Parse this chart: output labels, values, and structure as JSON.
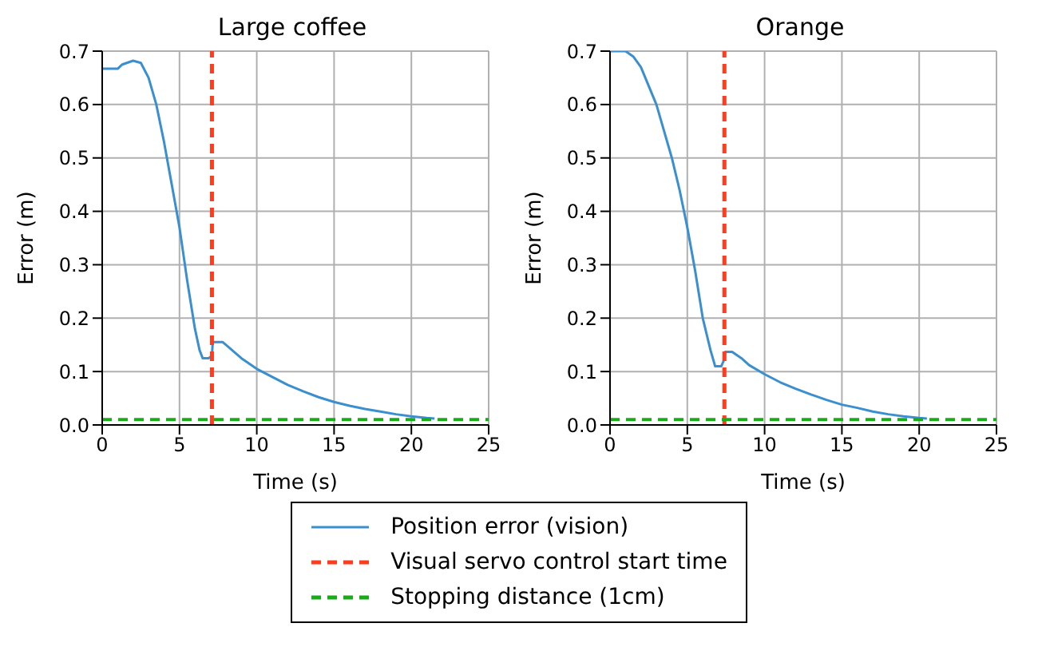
{
  "chart_data": [
    {
      "type": "line",
      "title": "Large coffee",
      "xlabel": "Time (s)",
      "ylabel": "Error (m)",
      "xlim": [
        0,
        25
      ],
      "xticks": [
        0,
        5,
        10,
        15,
        20,
        25
      ],
      "ylim": [
        0,
        0.7
      ],
      "yticks": [
        {
          "value": 0,
          "label": "0.0"
        },
        {
          "value": 0.1,
          "label": "0.1"
        },
        {
          "value": 0.2,
          "label": "0.2"
        },
        {
          "value": 0.3,
          "label": "0.3"
        },
        {
          "value": 0.4,
          "label": "0.4"
        },
        {
          "value": 0.5,
          "label": "0.5"
        },
        {
          "value": 0.6,
          "label": "0.6"
        },
        {
          "value": 0.7,
          "label": "0.7"
        }
      ],
      "grid": true,
      "legend": "bottom",
      "line_style": "solid",
      "marker": "none",
      "series": [
        {
          "name": "Position error (vision)",
          "color": "#3a8fd0",
          "x": [
            0,
            1,
            1.3,
            2,
            2.5,
            3,
            3.5,
            4,
            4.5,
            5,
            5.5,
            6,
            6.3,
            6.5,
            6.9,
            7.1,
            7.15,
            7.8,
            8,
            9,
            10,
            11,
            12,
            13,
            14,
            15,
            16,
            17,
            18,
            19,
            20,
            21,
            21.5
          ],
          "values": [
            0.667,
            0.667,
            0.675,
            0.682,
            0.678,
            0.65,
            0.6,
            0.53,
            0.45,
            0.37,
            0.27,
            0.18,
            0.14,
            0.125,
            0.125,
            0.13,
            0.155,
            0.155,
            0.15,
            0.125,
            0.105,
            0.09,
            0.075,
            0.063,
            0.052,
            0.043,
            0.036,
            0.03,
            0.025,
            0.02,
            0.016,
            0.013,
            0.012
          ]
        }
      ],
      "ref_lines": [
        {
          "axis": "x",
          "value": 7.1,
          "label": "Visual servo control start time",
          "color": "#ff3c1e",
          "line_style": "dashed"
        },
        {
          "axis": "y",
          "value": 0.01,
          "label": "Stopping distance (1cm)",
          "color": "#1aaa1a",
          "line_style": "dashed"
        }
      ]
    },
    {
      "type": "line",
      "title": "Orange",
      "xlabel": "Time (s)",
      "ylabel": "Error (m)",
      "xlim": [
        0,
        25
      ],
      "xticks": [
        0,
        5,
        10,
        15,
        20,
        25
      ],
      "ylim": [
        0,
        0.7
      ],
      "yticks": [
        {
          "value": 0,
          "label": "0.0"
        },
        {
          "value": 0.1,
          "label": "0.1"
        },
        {
          "value": 0.2,
          "label": "0.2"
        },
        {
          "value": 0.3,
          "label": "0.3"
        },
        {
          "value": 0.4,
          "label": "0.4"
        },
        {
          "value": 0.5,
          "label": "0.5"
        },
        {
          "value": 0.6,
          "label": "0.6"
        },
        {
          "value": 0.7,
          "label": "0.7"
        }
      ],
      "grid": true,
      "line_style": "solid",
      "marker": "none",
      "series": [
        {
          "color": "#3a8fd0",
          "x": [
            0,
            1,
            1.5,
            2,
            3,
            4,
            4.5,
            5,
            5.5,
            6,
            6.5,
            6.8,
            7.2,
            7.35,
            7.45,
            7.9,
            8.5,
            9,
            10,
            11,
            12,
            13,
            14,
            15,
            16,
            17,
            18,
            19,
            20,
            20.5
          ],
          "values": [
            0.7,
            0.7,
            0.69,
            0.67,
            0.6,
            0.5,
            0.44,
            0.37,
            0.29,
            0.2,
            0.14,
            0.11,
            0.11,
            0.12,
            0.137,
            0.137,
            0.125,
            0.112,
            0.095,
            0.08,
            0.068,
            0.057,
            0.047,
            0.038,
            0.032,
            0.025,
            0.02,
            0.016,
            0.013,
            0.012
          ]
        }
      ],
      "ref_lines": [
        {
          "axis": "x",
          "value": 7.4,
          "color": "#ff3c1e",
          "line_style": "dashed"
        },
        {
          "axis": "y",
          "value": 0.01,
          "color": "#1aaa1a",
          "line_style": "dashed"
        }
      ]
    }
  ]
}
